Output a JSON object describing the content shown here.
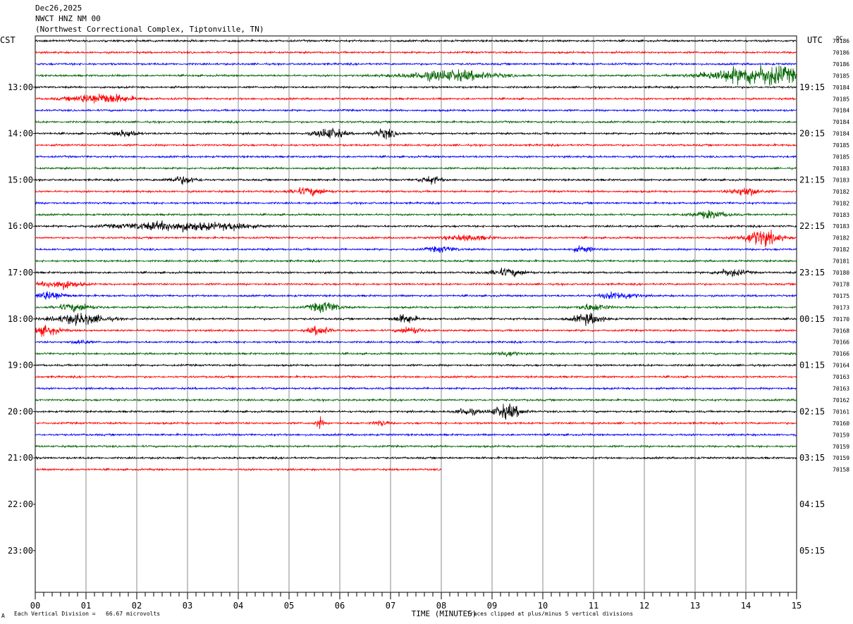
{
  "header": {
    "date": "Dec26,2025",
    "station": "NWCT HNZ NM 00",
    "location": "(Northwest Correctional Complex, Tiptonville, TN)"
  },
  "left_timezone": "CST",
  "right_timezone": "UTC",
  "dc_header": "DC",
  "footer": {
    "division_note": "Each Vertical Division =   66.67 microvolts",
    "clip_note": "Traces clipped at plus/minus 5 vertical divisions",
    "corner_mark": "A"
  },
  "chart_data": {
    "type": "line",
    "title": "",
    "xlabel": "TIME (MINUTES)",
    "x_ticks": [
      "00",
      "01",
      "02",
      "03",
      "04",
      "05",
      "06",
      "07",
      "08",
      "09",
      "10",
      "11",
      "12",
      "13",
      "14",
      "15"
    ],
    "xlim": [
      0,
      15
    ],
    "left_hour_labels": [
      "13:00",
      "14:00",
      "15:00",
      "16:00",
      "17:00",
      "18:00",
      "19:00",
      "20:00",
      "21:00",
      "22:00",
      "23:00"
    ],
    "right_hour_labels": [
      "19:15",
      "20:15",
      "21:15",
      "22:15",
      "23:15",
      "00:15",
      "01:15",
      "02:15",
      "03:15",
      "04:15",
      "05:15"
    ],
    "rows_per_hour": 4,
    "row_minutes": 15,
    "trace_colors": [
      "#000000",
      "#ff0000",
      "#0000ff",
      "#006400"
    ],
    "dc_offsets": [
      "70186",
      "70186",
      "70186",
      "70185",
      "70184",
      "70185",
      "70184",
      "70184",
      "70184",
      "70185",
      "70185",
      "70183",
      "70183",
      "70182",
      "70182",
      "70183",
      "70183",
      "70182",
      "70182",
      "70181",
      "70180",
      "70178",
      "70175",
      "70173",
      "70170",
      "70168",
      "70166",
      "70166",
      "70164",
      "70163",
      "70163",
      "70162",
      "70161",
      "70160",
      "70159",
      "70159",
      "70159",
      "70158"
    ],
    "last_row_end_minute": 8,
    "clip_divisions": 5,
    "microvolts_per_division": 66.67
  }
}
